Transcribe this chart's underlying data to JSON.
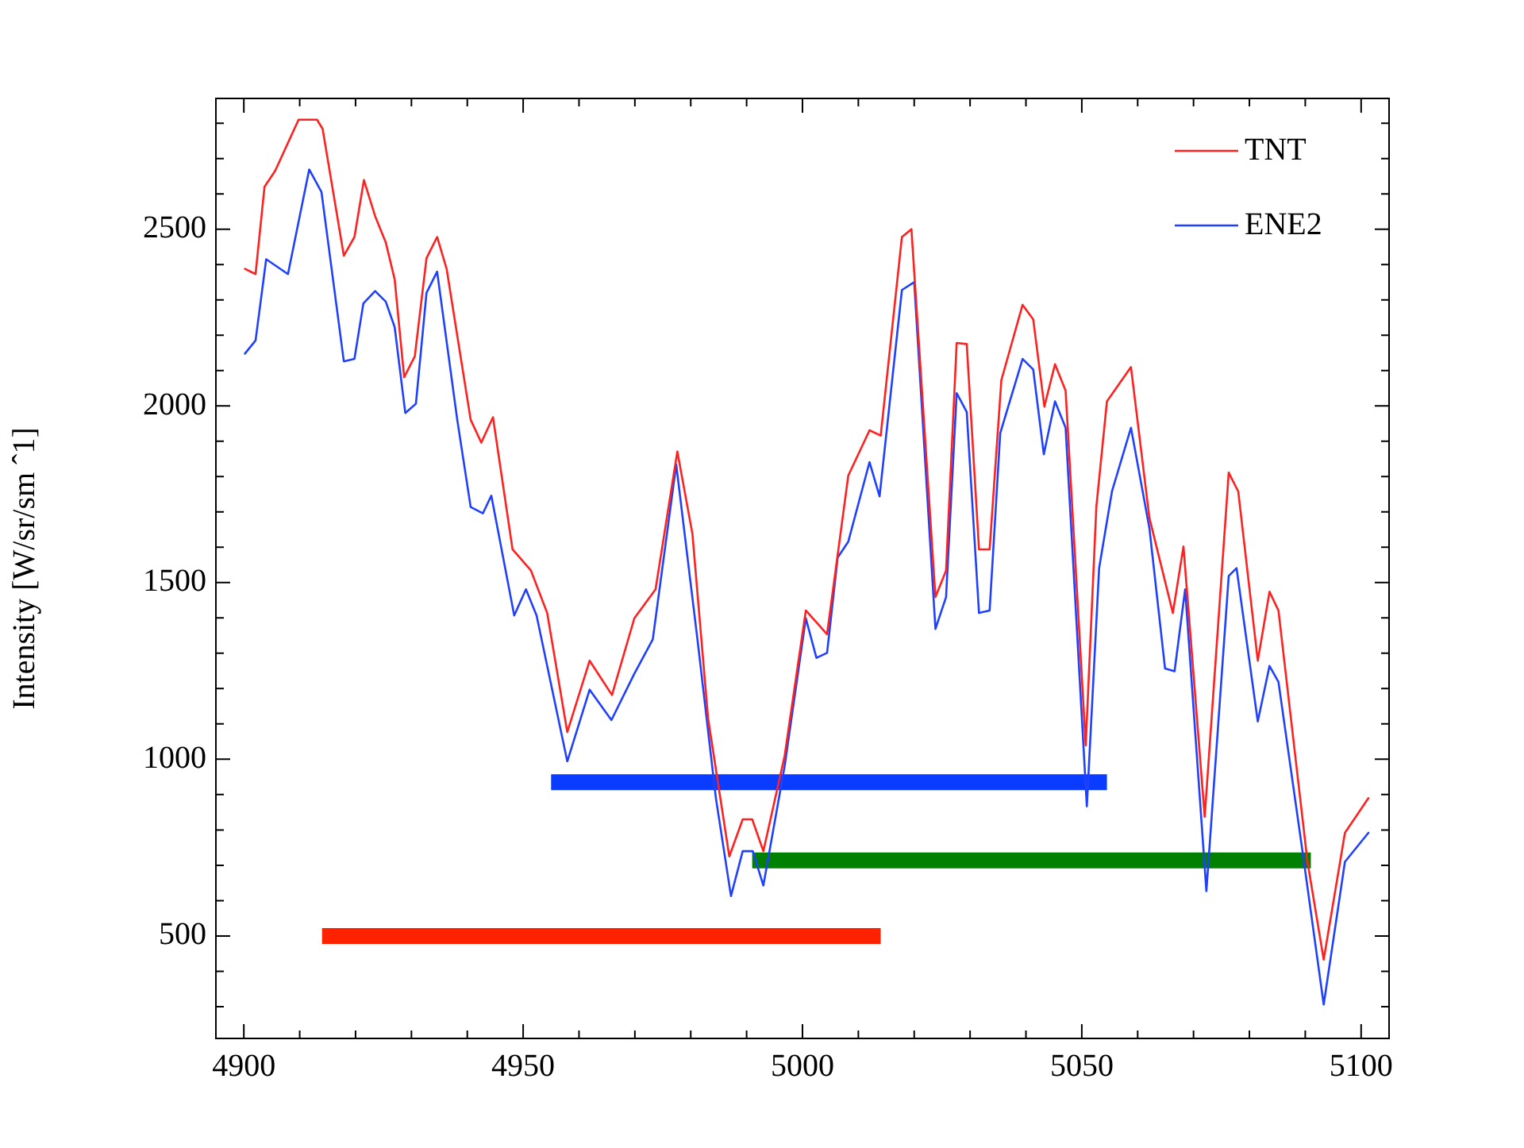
{
  "chart_data": {
    "type": "line",
    "ylabel": "Intensity [W/sr/sm ˆ1]",
    "xlim": [
      4895,
      5105
    ],
    "ylim": [
      210,
      2870
    ],
    "xticks": [
      4900,
      {
        "value": 4910,
        "label": null
      },
      {
        "value": 4920,
        "label": null
      },
      {
        "value": 4930,
        "label": null
      },
      {
        "value": 4940,
        "label": null
      },
      4950,
      {
        "value": 4960,
        "label": null
      },
      {
        "value": 4970,
        "label": null
      },
      {
        "value": 4980,
        "label": null
      },
      {
        "value": 4990,
        "label": null
      },
      5000,
      {
        "value": 5010,
        "label": null
      },
      {
        "value": 5020,
        "label": null
      },
      {
        "value": 5030,
        "label": null
      },
      {
        "value": 5040,
        "label": null
      },
      5050,
      {
        "value": 5060,
        "label": null
      },
      {
        "value": 5070,
        "label": null
      },
      {
        "value": 5080,
        "label": null
      },
      {
        "value": 5090,
        "label": null
      },
      5100
    ],
    "yticks": [
      {
        "value": 300,
        "label": null
      },
      {
        "value": 400,
        "label": null
      },
      500,
      {
        "value": 600,
        "label": null
      },
      {
        "value": 700,
        "label": null
      },
      {
        "value": 800,
        "label": null
      },
      {
        "value": 900,
        "label": null
      },
      1000,
      {
        "value": 1100,
        "label": null
      },
      {
        "value": 1200,
        "label": null
      },
      {
        "value": 1300,
        "label": null
      },
      {
        "value": 1400,
        "label": null
      },
      1500,
      {
        "value": 1600,
        "label": null
      },
      {
        "value": 1700,
        "label": null
      },
      {
        "value": 1800,
        "label": null
      },
      {
        "value": 1900,
        "label": null
      },
      2000,
      {
        "value": 2100,
        "label": null
      },
      {
        "value": 2200,
        "label": null
      },
      {
        "value": 2300,
        "label": null
      },
      {
        "value": 2400,
        "label": null
      },
      2500,
      {
        "value": 2600,
        "label": null
      },
      {
        "value": 2700,
        "label": null
      },
      {
        "value": 2800,
        "label": null
      }
    ],
    "legend": "top right",
    "marker": "none",
    "line_style": "solid",
    "series": [
      {
        "name": "TNT",
        "color": "#ff2020",
        "x": [
          4900.2,
          4902.1,
          4903.7,
          4905.6,
          4909.8,
          4913.1,
          4914.1,
          4917.9,
          4919.8,
          4921.5,
          4923.5,
          4925.4,
          4927,
          4928.7,
          4930.6,
          4932.7,
          4934.6,
          4936.3,
          4940.6,
          4942.5,
          4944.6,
          4948.1,
          4951.4,
          4954.3,
          4957.9,
          4961.9,
          4965.9,
          4969.9,
          4973.7,
          4977.6,
          4980.3,
          4983.1,
          4986.9,
          4989.3,
          4991,
          4993,
          4996.8,
          5000.6,
          5004.4,
          5008.2,
          5012,
          5014,
          5017.8,
          5019.5,
          5023.8,
          5025.7,
          5027.6,
          5029.4,
          5031.6,
          5033.5,
          5035.6,
          5039.4,
          5041.3,
          5043.3,
          5045.2,
          5047.1,
          5050.7,
          5052.6,
          5054.5,
          5058.8,
          5062.1,
          5066.3,
          5068.2,
          5072,
          5076.3,
          5078,
          5081.5,
          5083.6,
          5085.2,
          5090.4,
          5093.3,
          5097.1,
          5101.3
        ],
        "values": [
          2388,
          2373,
          2620,
          2665,
          2810,
          2810,
          2784,
          2425,
          2478,
          2639,
          2537,
          2463,
          2358,
          2081,
          2140,
          2418,
          2478,
          2388,
          1961,
          1896,
          1968,
          1594,
          1534,
          1414,
          1077,
          1279,
          1182,
          1399,
          1481,
          1871,
          1638,
          1116,
          725,
          830,
          830,
          740,
          1009,
          1421,
          1354,
          1803,
          1931,
          1916,
          2478,
          2500,
          1459,
          1534,
          2178,
          2175,
          1594,
          1594,
          2073,
          2286,
          2245,
          1998,
          2118,
          2043,
          1039,
          1714,
          2013,
          2110,
          1683,
          1414,
          1602,
          837,
          1811,
          1758,
          1279,
          1474,
          1421,
          710,
          433,
          792,
          890
        ]
      },
      {
        "name": "ENE2",
        "color": "#2040ff",
        "x": [
          4900.2,
          4902.1,
          4904,
          4907.9,
          4911.7,
          4913.9,
          4917.9,
          4919.8,
          4921.4,
          4923.5,
          4925.4,
          4927,
          4928.9,
          4930.8,
          4932.7,
          4934.6,
          4938.2,
          4940.6,
          4942.8,
          4944.3,
          4948.4,
          4950.5,
          4952.4,
          4957.9,
          4961.9,
          4965.8,
          4969.9,
          4973.2,
          4977.4,
          4981.2,
          4984.5,
          4987.2,
          4989.3,
          4991.1,
          4993,
          4996.8,
          5000.6,
          5002.5,
          5004.4,
          5006.3,
          5008.2,
          5012,
          5013.8,
          5017.8,
          5020,
          5023.8,
          5025.7,
          5027.6,
          5029.4,
          5031.6,
          5033.5,
          5035.4,
          5039.4,
          5041.3,
          5043.2,
          5045.2,
          5047.1,
          5050.9,
          5053.1,
          5055.4,
          5058.8,
          5062.1,
          5064.9,
          5066.6,
          5068.5,
          5072.3,
          5076.3,
          5077.7,
          5081.5,
          5083.6,
          5085.2,
          5089.5,
          5093.3,
          5097.1,
          5101.3
        ],
        "values": [
          2148,
          2185,
          2415,
          2373,
          2669,
          2605,
          2126,
          2133,
          2290,
          2325,
          2295,
          2223,
          1980,
          2006,
          2320,
          2380,
          1961,
          1714,
          1696,
          1746,
          1407,
          1481,
          1407,
          994,
          1197,
          1111,
          1242,
          1339,
          1834,
          1339,
          890,
          613,
          740,
          740,
          643,
          980,
          1399,
          1287,
          1301,
          1571,
          1616,
          1841,
          1744,
          2328,
          2350,
          1369,
          1459,
          2036,
          1983,
          1414,
          1421,
          1923,
          2133,
          2103,
          1863,
          2013,
          1938,
          867,
          1541,
          1758,
          1938,
          1654,
          1257,
          1249,
          1481,
          627,
          1519,
          1541,
          1107,
          1264,
          1219,
          740,
          306,
          710,
          792
        ]
      },
      {
        "color": "#0a3cff",
        "x": [
          4955,
          5054.5
        ],
        "values": [
          935,
          935
        ]
      },
      {
        "color": "#008000",
        "x": [
          4991,
          5091
        ],
        "values": [
          714,
          714
        ]
      },
      {
        "color": "#ff2200",
        "x": [
          4914,
          5014
        ],
        "values": [
          500,
          500
        ]
      }
    ]
  }
}
